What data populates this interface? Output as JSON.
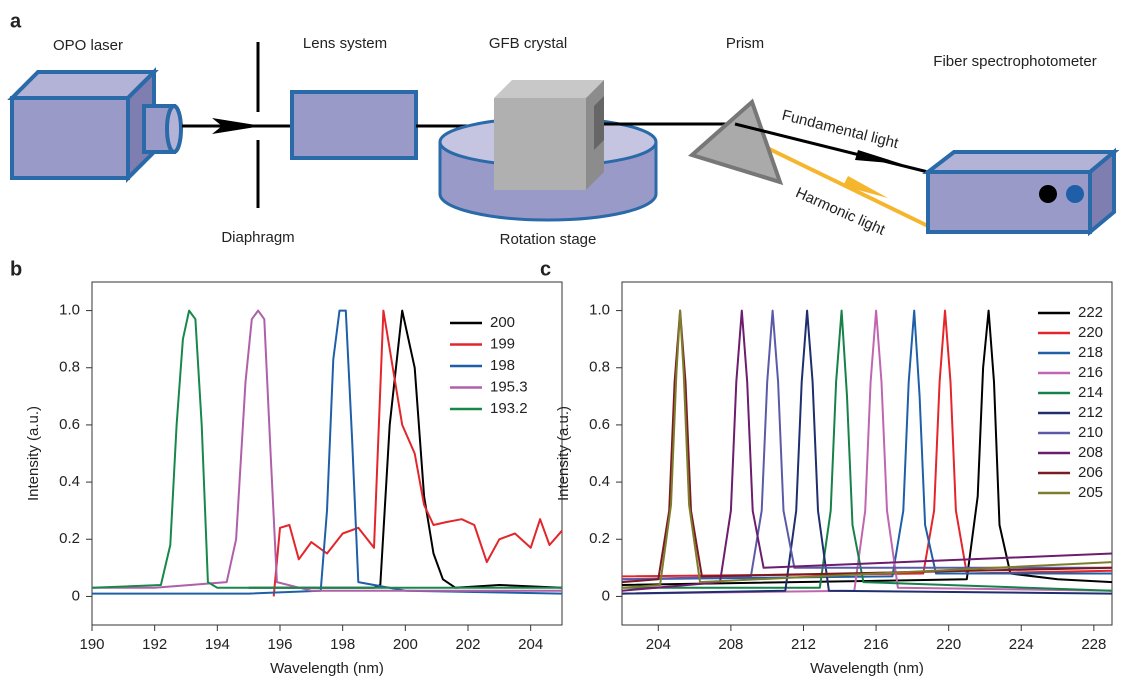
{
  "diagram": {
    "panel_label": "a",
    "labels": {
      "laser": "OPO laser",
      "diaphragm": "Diaphragm",
      "lens": "Lens system",
      "crystal": "GFB crystal",
      "stage": "Rotation stage",
      "prism": "Prism",
      "spectro": "Fiber spectrophotometer",
      "fundamental": "Fundamental light",
      "harmonic": "Harmonic light"
    }
  },
  "chart_data": [
    {
      "type": "line",
      "panel_label": "b",
      "x_label": "Wavelength (nm)",
      "y_label": "Intensity (a.u.)",
      "xlim": [
        190,
        205
      ],
      "xticks": [
        190,
        192,
        194,
        196,
        198,
        200,
        202,
        204
      ],
      "ylim": [
        -0.1,
        1.1
      ],
      "yticks": [
        0,
        0.2,
        0.4,
        0.6,
        0.8,
        {
          "value": 1,
          "label": "1.0"
        }
      ],
      "series": [
        {
          "name": "200",
          "color": "#000000",
          "x": [
            195,
            197,
            199,
            199.2,
            199.5,
            199.9,
            200.3,
            200.6,
            200.9,
            201.2,
            201.6,
            203,
            205
          ],
          "values": [
            0.03,
            0.03,
            0.03,
            0.04,
            0.6,
            1,
            0.8,
            0.35,
            0.15,
            0.06,
            0.03,
            0.04,
            0.03
          ]
        },
        {
          "name": "199",
          "color": "#e3262b",
          "x": [
            195.8,
            196,
            196.3,
            196.6,
            197,
            197.5,
            198,
            198.5,
            199,
            199.3,
            199.6,
            199.9,
            200.3,
            200.6,
            200.9,
            201.3,
            201.8,
            202.2,
            202.6,
            203,
            203.5,
            204,
            204.3,
            204.6,
            205
          ],
          "values": [
            0,
            0.24,
            0.25,
            0.13,
            0.19,
            0.15,
            0.22,
            0.24,
            0.17,
            1,
            0.8,
            0.6,
            0.5,
            0.32,
            0.25,
            0.26,
            0.27,
            0.25,
            0.12,
            0.2,
            0.22,
            0.17,
            0.27,
            0.18,
            0.23
          ]
        },
        {
          "name": "198",
          "color": "#1f5fa8",
          "x": [
            190,
            195,
            197.3,
            197.5,
            197.7,
            197.9,
            198.1,
            198.3,
            198.5,
            200,
            205
          ],
          "values": [
            0.01,
            0.01,
            0.02,
            0.3,
            0.83,
            1,
            1,
            0.55,
            0.05,
            0.02,
            0.01
          ]
        },
        {
          "name": "195.3",
          "color": "#b060a8",
          "x": [
            190,
            192,
            194.3,
            194.6,
            194.9,
            195.1,
            195.3,
            195.5,
            195.7,
            195.9,
            197,
            205
          ],
          "values": [
            0.03,
            0.03,
            0.05,
            0.2,
            0.75,
            0.97,
            1,
            0.97,
            0.5,
            0.05,
            0.02,
            0.02
          ]
        },
        {
          "name": "193.2",
          "color": "#18884a",
          "x": [
            190,
            192.2,
            192.5,
            192.7,
            192.9,
            193.1,
            193.3,
            193.5,
            193.7,
            194,
            200,
            205
          ],
          "values": [
            0.03,
            0.04,
            0.18,
            0.6,
            0.9,
            1,
            0.97,
            0.6,
            0.05,
            0.03,
            0.03,
            0.03
          ]
        }
      ]
    },
    {
      "type": "line",
      "panel_label": "c",
      "x_label": "Wavelength (nm)",
      "y_label": "Intensity (a.u.)",
      "xlim": [
        202,
        229
      ],
      "xticks": [
        204,
        208,
        212,
        216,
        220,
        224,
        228
      ],
      "ylim": [
        -0.1,
        1.1
      ],
      "yticks": [
        0,
        0.2,
        0.4,
        0.6,
        0.8,
        {
          "value": 1,
          "label": "1.0"
        }
      ],
      "series": [
        {
          "name": "222",
          "color": "#000000",
          "x": [
            202,
            221,
            221.6,
            221.9,
            222.2,
            222.5,
            222.8,
            223.4,
            226,
            229
          ],
          "values": [
            0.04,
            0.06,
            0.35,
            0.8,
            1,
            0.75,
            0.25,
            0.08,
            0.06,
            0.05
          ]
        },
        {
          "name": "220",
          "color": "#e3262b",
          "x": [
            202,
            218.6,
            219.2,
            219.5,
            219.8,
            220.1,
            220.4,
            221,
            229
          ],
          "values": [
            0.07,
            0.08,
            0.3,
            0.75,
            1,
            0.75,
            0.3,
            0.08,
            0.09
          ]
        },
        {
          "name": "218",
          "color": "#1f5fa8",
          "x": [
            202,
            216.9,
            217.5,
            217.8,
            218.1,
            218.4,
            218.7,
            219.3,
            229
          ],
          "values": [
            0.06,
            0.07,
            0.3,
            0.75,
            1,
            0.7,
            0.25,
            0.08,
            0.08
          ]
        },
        {
          "name": "216",
          "color": "#c066b0",
          "x": [
            202,
            214.8,
            215.4,
            215.7,
            216,
            216.3,
            216.6,
            217.2,
            229
          ],
          "values": [
            0.01,
            0.02,
            0.3,
            0.75,
            1,
            0.75,
            0.3,
            0.03,
            0.02
          ]
        },
        {
          "name": "214",
          "color": "#17814a",
          "x": [
            202,
            212.9,
            213.5,
            213.8,
            214.1,
            214.4,
            214.7,
            215.3,
            229
          ],
          "values": [
            0.03,
            0.03,
            0.3,
            0.75,
            1,
            0.7,
            0.25,
            0.05,
            0.02
          ]
        },
        {
          "name": "212",
          "color": "#1f2e6e",
          "x": [
            202,
            211,
            211.6,
            211.9,
            212.2,
            212.5,
            212.8,
            213.4,
            229
          ],
          "values": [
            0.01,
            0.02,
            0.3,
            0.75,
            1,
            0.75,
            0.3,
            0.02,
            0.01
          ]
        },
        {
          "name": "210",
          "color": "#5b5aa8",
          "x": [
            202,
            209.1,
            209.7,
            210,
            210.3,
            210.6,
            210.9,
            211.5,
            229
          ],
          "values": [
            0.06,
            0.07,
            0.3,
            0.75,
            1,
            0.75,
            0.3,
            0.1,
            0.1
          ]
        },
        {
          "name": "208",
          "color": "#6d1d6e",
          "x": [
            202,
            207.4,
            208,
            208.3,
            208.6,
            208.9,
            209.2,
            209.8,
            229
          ],
          "values": [
            0.02,
            0.05,
            0.3,
            0.75,
            1,
            0.75,
            0.3,
            0.1,
            0.15
          ]
        },
        {
          "name": "206",
          "color": "#7a1a22",
          "x": [
            202,
            204,
            204.6,
            204.9,
            205.2,
            205.5,
            205.8,
            206.4,
            229
          ],
          "values": [
            0.05,
            0.06,
            0.3,
            0.75,
            1,
            0.75,
            0.3,
            0.07,
            0.1
          ]
        },
        {
          "name": "205",
          "color": "#7e7d2c",
          "x": [
            202,
            204.1,
            204.7,
            205,
            205.2,
            205.4,
            205.7,
            206.3,
            229
          ],
          "values": [
            0.03,
            0.04,
            0.32,
            0.78,
            1,
            0.78,
            0.32,
            0.05,
            0.12
          ]
        }
      ]
    }
  ]
}
